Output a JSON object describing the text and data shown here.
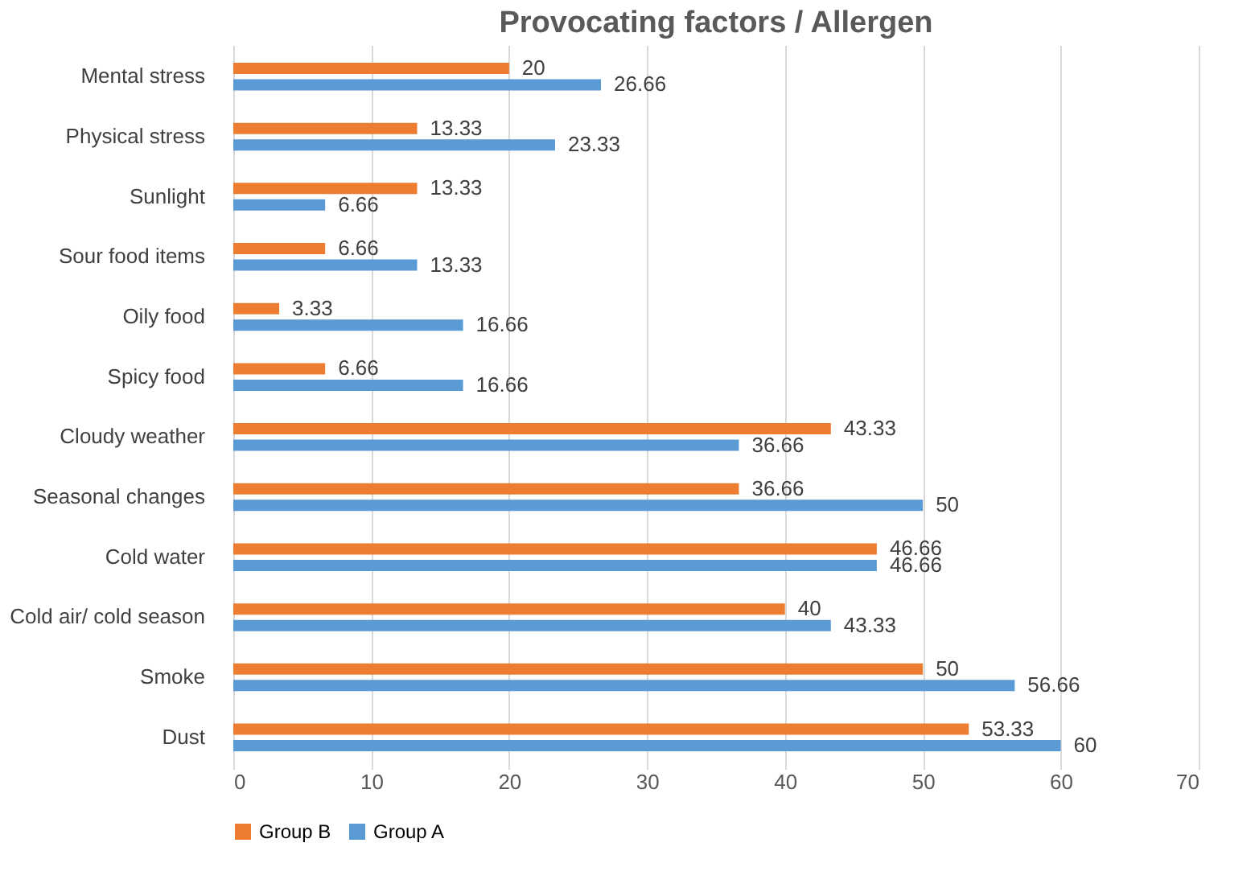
{
  "chart_data": {
    "type": "bar",
    "orientation": "horizontal",
    "title": "Provocating factors / Allergen",
    "categories": [
      "Mental stress",
      "Physical stress",
      "Sunlight",
      "Sour food items",
      "Oily food",
      "Spicy food",
      "Cloudy weather",
      "Seasonal changes",
      "Cold water",
      "Cold air/ cold season",
      "Smoke",
      "Dust"
    ],
    "series": [
      {
        "name": "Group B",
        "color": "#ed7d31",
        "values": [
          20,
          13.33,
          13.33,
          6.66,
          3.33,
          6.66,
          43.33,
          36.66,
          46.66,
          40,
          50,
          53.33
        ]
      },
      {
        "name": "Group A",
        "color": "#5b9bd5",
        "values": [
          26.66,
          23.33,
          6.66,
          13.33,
          16.66,
          16.66,
          36.66,
          50,
          46.66,
          43.33,
          56.66,
          60
        ]
      }
    ],
    "xlim": [
      0,
      70
    ],
    "xticks": [
      0,
      10,
      20,
      30,
      40,
      50,
      60,
      70
    ],
    "grid": "x",
    "legend": "bottom",
    "data_labels": true
  }
}
